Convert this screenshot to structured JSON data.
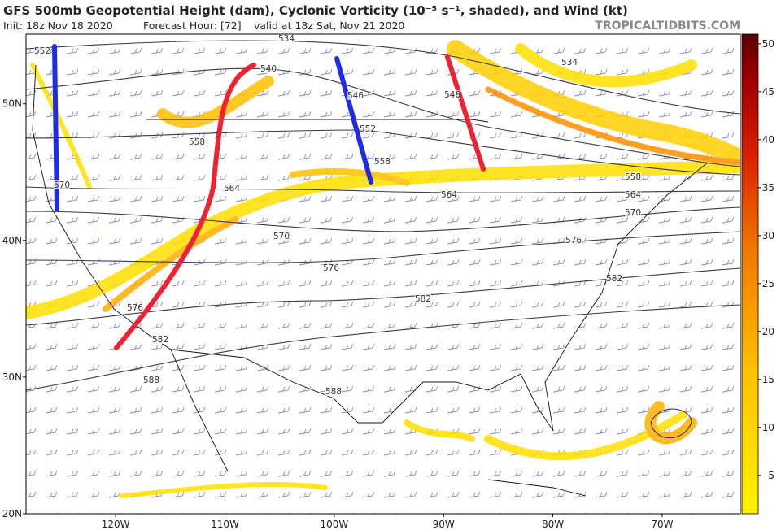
{
  "header": {
    "title": "GFS 500mb Geopotential Height (dam), Cyclonic Vorticity (10⁻⁵ s⁻¹, shaded), and Wind (kt)",
    "init": "Init: 18z Nov 18 2020",
    "forecast_hour": "Forecast Hour: [72]",
    "valid": "valid at 18z Sat, Nov 21 2020",
    "brand": "TROPICALTIDBITS.COM"
  },
  "map": {
    "lat_lim": [
      20,
      55.1
    ],
    "lat_ticks": [
      {
        "value": 20,
        "label": "20N"
      },
      {
        "value": 30,
        "label": "30N"
      },
      {
        "value": 40,
        "label": "40N"
      },
      {
        "value": 50,
        "label": "50N"
      }
    ],
    "lon_lim": [
      -128.2,
      -62.85
    ],
    "lon_ticks": [
      {
        "value": -120,
        "label": "120W"
      },
      {
        "value": -110,
        "label": "110W"
      },
      {
        "value": -100,
        "label": "100W"
      },
      {
        "value": -90,
        "label": "90W"
      },
      {
        "value": -80,
        "label": "80W"
      },
      {
        "value": -70,
        "label": "70W"
      }
    ],
    "contour_labels": [
      "552",
      "534",
      "540",
      "546",
      "552",
      "558",
      "558",
      "564",
      "570",
      "564",
      "558",
      "564",
      "570",
      "570",
      "576",
      "576",
      "582",
      "582",
      "576",
      "582",
      "588",
      "588",
      "534",
      "546"
    ]
  },
  "colorbar": {
    "lim": [
      1,
      51
    ],
    "ticks": [
      5,
      10,
      15,
      20,
      25,
      30,
      35,
      40,
      45,
      50
    ]
  }
}
